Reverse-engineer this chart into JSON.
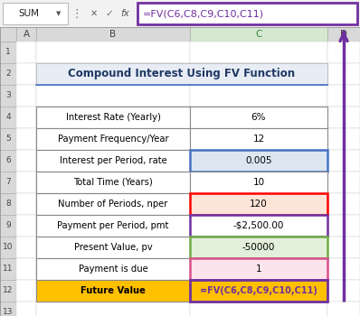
{
  "title": "Compound Interest Using FV Function",
  "rows": [
    {
      "label": "Interest Rate (Yearly)",
      "value": "6%",
      "value_bg": "#ffffff",
      "value_border": "#888888",
      "border_lw": 0.8
    },
    {
      "label": "Payment Frequency/Year",
      "value": "12",
      "value_bg": "#ffffff",
      "value_border": "#888888",
      "border_lw": 0.8
    },
    {
      "label": "Interest per Period, rate",
      "value": "0.005",
      "value_bg": "#dce6f1",
      "value_border": "#4472c4",
      "border_lw": 1.8
    },
    {
      "label": "Total Time (Years)",
      "value": "10",
      "value_bg": "#ffffff",
      "value_border": "#888888",
      "border_lw": 0.8
    },
    {
      "label": "Number of Periods, nper",
      "value": "120",
      "value_bg": "#fce4d6",
      "value_border": "#ff0000",
      "border_lw": 1.8
    },
    {
      "label": "Payment per Period, pmt",
      "value": "-$2,500.00",
      "value_bg": "#ffffff",
      "value_border": "#7030a0",
      "border_lw": 1.8
    },
    {
      "label": "Present Value, pv",
      "value": "-50000",
      "value_bg": "#e2efda",
      "value_border": "#70ad47",
      "border_lw": 1.8
    },
    {
      "label": "Payment is due",
      "value": "1",
      "value_bg": "#fce4ec",
      "value_border": "#d9508a",
      "border_lw": 1.8
    },
    {
      "label": "Future Value",
      "value": "=FV(C6,C8,C9,C10,C11)",
      "value_bg": "#ffc000",
      "value_border": "#7030a0",
      "border_lw": 2.0
    }
  ],
  "bg_color": "#f2f2f2",
  "header_bg": "#d9d9d9",
  "c_header_bg": "#d6e8d0",
  "purple": "#7030a0",
  "title_color": "#1f3864",
  "title_bg": "#e8edf5",
  "formula_bar_bg": "#ffffff",
  "fv_text_color": "#7030a0",
  "arrow_color": "#7030a0"
}
